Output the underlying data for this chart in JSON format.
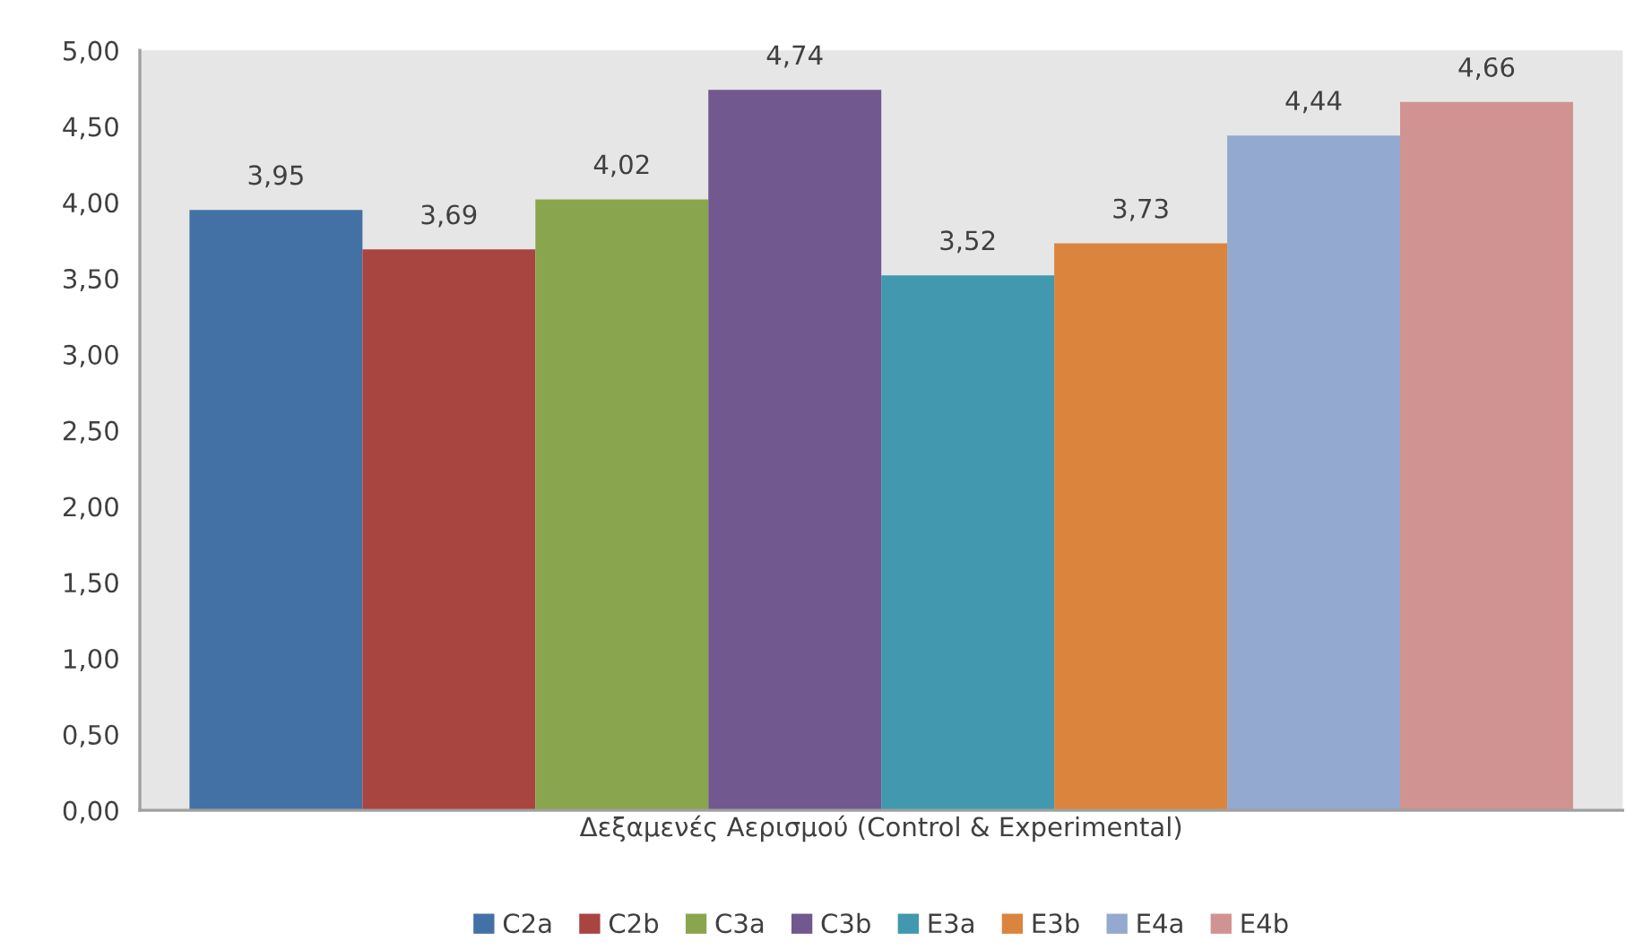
{
  "chart_data": {
    "type": "bar",
    "xlabel": "Δεξαμενές Αερισμού (Control & Experimental)",
    "categories": [
      null
    ],
    "series": [
      {
        "name": "C2a",
        "color": "#4471a5",
        "values": [
          3.95
        ],
        "value_labels": [
          "3,95"
        ]
      },
      {
        "name": "C2b",
        "color": "#a94541",
        "values": [
          3.69
        ],
        "value_labels": [
          "3,69"
        ]
      },
      {
        "name": "C3a",
        "color": "#89a54e",
        "values": [
          4.02
        ],
        "value_labels": [
          "4,02"
        ]
      },
      {
        "name": "C3b",
        "color": "#71588f",
        "values": [
          4.74
        ],
        "value_labels": [
          "4,74"
        ]
      },
      {
        "name": "E3a",
        "color": "#4198af",
        "values": [
          3.52
        ],
        "value_labels": [
          "3,52"
        ]
      },
      {
        "name": "E3b",
        "color": "#db843d",
        "values": [
          3.73
        ],
        "value_labels": [
          "3,73"
        ]
      },
      {
        "name": "E4a",
        "color": "#93a9cf",
        "values": [
          4.44
        ],
        "value_labels": [
          "4,44"
        ]
      },
      {
        "name": "E4b",
        "color": "#d19392",
        "values": [
          4.66
        ],
        "value_labels": [
          "4,66"
        ]
      }
    ],
    "ylim": [
      0,
      5
    ],
    "yticks": [
      {
        "value": 0,
        "label": "0,00"
      },
      {
        "value": 0.5,
        "label": "0,50"
      },
      {
        "value": 1,
        "label": "1,00"
      },
      {
        "value": 1.5,
        "label": "1,50"
      },
      {
        "value": 2,
        "label": "2,00"
      },
      {
        "value": 2.5,
        "label": "2,50"
      },
      {
        "value": 3,
        "label": "3,00"
      },
      {
        "value": 3.5,
        "label": "3,50"
      },
      {
        "value": 4,
        "label": "4,00"
      },
      {
        "value": 4.5,
        "label": "4,50"
      },
      {
        "value": 5,
        "label": "5,00"
      }
    ],
    "legend": "bottom"
  }
}
